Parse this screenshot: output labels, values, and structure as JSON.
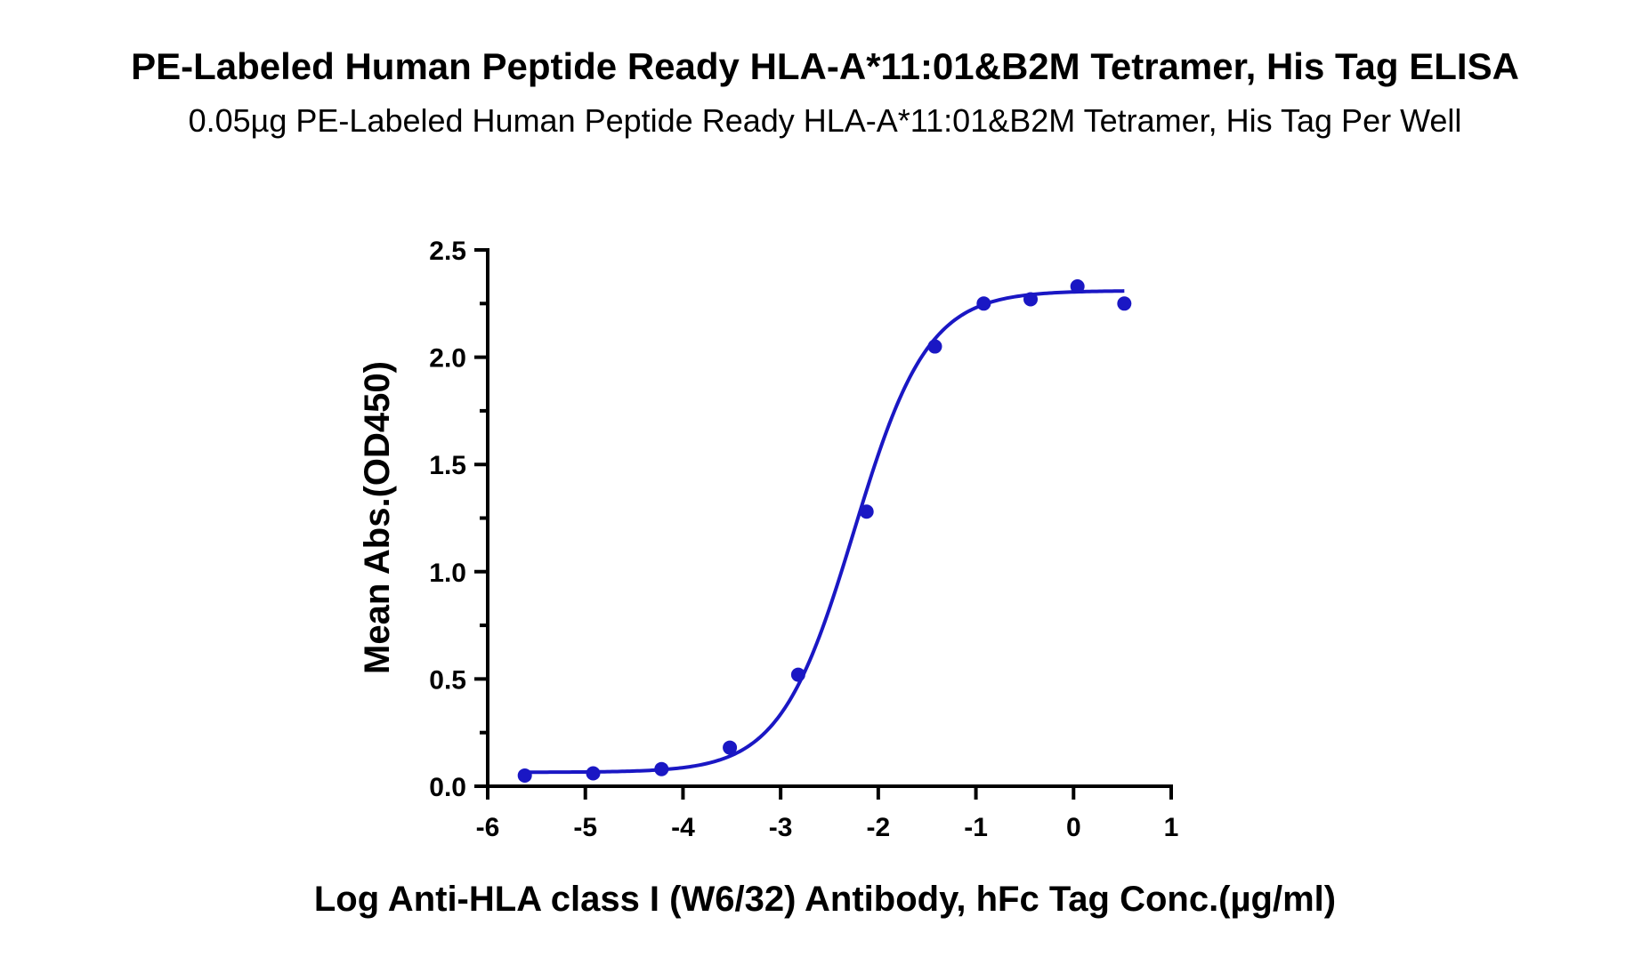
{
  "chart_data": {
    "type": "scatter",
    "title": "PE-Labeled Human Peptide Ready HLA-A*11:01&B2M Tetramer, His Tag ELISA",
    "subtitle": "0.05µg PE-Labeled Human Peptide Ready HLA-A*11:01&B2M Tetramer, His Tag Per Well",
    "xlabel": "Log Anti-HLA class I (W6/32) Antibody, hFc Tag Conc.(µg/ml)",
    "ylabel": "Mean Abs.(OD450)",
    "xlim": [
      -6,
      1
    ],
    "ylim": [
      0,
      2.5
    ],
    "xticks": [
      "-6",
      "-5",
      "-4",
      "-3",
      "-2",
      "-1",
      "0",
      "1"
    ],
    "yticks": [
      "0.0",
      "0.5",
      "1.0",
      "1.5",
      "2.0",
      "2.5"
    ],
    "grid": false,
    "series": [
      {
        "color": "#1a17c4",
        "points": [
          {
            "x": -5.62,
            "y": 0.05
          },
          {
            "x": -4.92,
            "y": 0.06
          },
          {
            "x": -4.22,
            "y": 0.08
          },
          {
            "x": -3.52,
            "y": 0.18
          },
          {
            "x": -2.82,
            "y": 0.52
          },
          {
            "x": -2.12,
            "y": 1.28
          },
          {
            "x": -1.42,
            "y": 2.05
          },
          {
            "x": -0.92,
            "y": 2.25
          },
          {
            "x": -0.44,
            "y": 2.27
          },
          {
            "x": 0.04,
            "y": 2.33
          },
          {
            "x": 0.52,
            "y": 2.25
          }
        ],
        "fit_curve": {
          "model": "4PL",
          "bottom": 0.065,
          "top": 2.31,
          "log_ec50": -2.25,
          "hill_slope": 1.15
        }
      }
    ]
  }
}
